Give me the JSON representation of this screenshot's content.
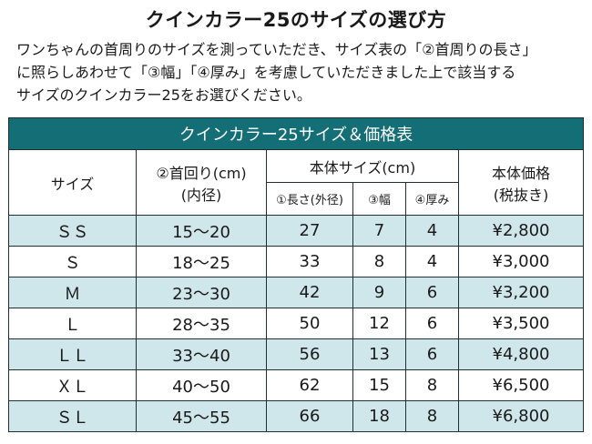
{
  "title": "クインカラー25のサイズの選び方",
  "intro": [
    "ワンちゃんの首周りのサイズを測っていただき、サイズ表の「②首周りの長さ」",
    "に照らしあわせて「③幅」「④厚み」を考慮していただきました上で該当する",
    "サイズのクインカラー25をお選びください。"
  ],
  "table": {
    "caption": "クインカラー25サイズ＆価格表",
    "headers": {
      "size": "サイズ",
      "neck_line1": "②首回り(cm)",
      "neck_line2": "(内径)",
      "body_group": "本体サイズ(cm)",
      "length": "①長さ(外径)",
      "width": "③幅",
      "thickness": "④厚み",
      "price_line1": "本体価格",
      "price_line2": "(税抜き)"
    },
    "rows": [
      {
        "size": "ＳＳ",
        "neck": "15〜20",
        "length": "27",
        "width": "7",
        "thickness": "4",
        "price": "¥2,800"
      },
      {
        "size": "Ｓ",
        "neck": "18〜25",
        "length": "33",
        "width": "8",
        "thickness": "4",
        "price": "¥3,000"
      },
      {
        "size": "Ｍ",
        "neck": "23〜30",
        "length": "42",
        "width": "9",
        "thickness": "6",
        "price": "¥3,200"
      },
      {
        "size": "Ｌ",
        "neck": "28〜35",
        "length": "50",
        "width": "12",
        "thickness": "6",
        "price": "¥3,500"
      },
      {
        "size": "ＬＬ",
        "neck": "33〜40",
        "length": "56",
        "width": "13",
        "thickness": "6",
        "price": "¥4,800"
      },
      {
        "size": "ＸＬ",
        "neck": "40〜50",
        "length": "62",
        "width": "15",
        "thickness": "8",
        "price": "¥6,500"
      },
      {
        "size": "ＳＬ",
        "neck": "45〜55",
        "length": "66",
        "width": "18",
        "thickness": "8",
        "price": "¥6,800"
      }
    ]
  },
  "colors": {
    "caption_bg": "#136e76",
    "row_tint": "#cfe6ea",
    "border": "#1f2f33"
  }
}
